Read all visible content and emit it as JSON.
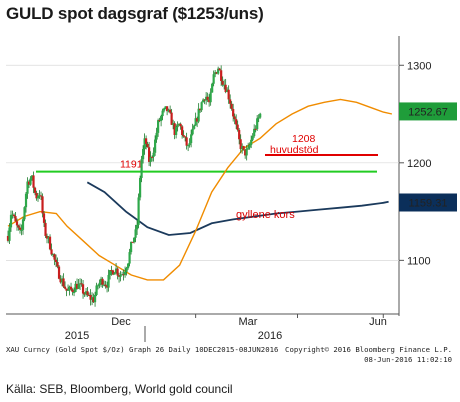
{
  "title": "GULD spot dagsgraf ($1253/uns)",
  "source": "Källa: SEB, Bloomberg, World gold council",
  "credit": {
    "line1_left": "XAU Curncy (Gold Spot  $/Oz) Graph 26  Daily 10DEC2015-08JUN2016",
    "line1_right": "Copyright© 2016 Bloomberg Finance L.P.",
    "line2_right": "08-Jun-2016 11:02:10"
  },
  "chart_data": {
    "type": "candlestick",
    "y_ticks": [
      1100,
      1200,
      1300
    ],
    "ylim": [
      1045,
      1330
    ],
    "x_labels": [
      {
        "label": "Dec",
        "row": 1
      },
      {
        "label": "Mar",
        "row": 1
      },
      {
        "label": "Jun",
        "row": 1
      },
      {
        "label": "2015",
        "row": 2
      },
      {
        "label": "2016",
        "row": 2
      }
    ],
    "last_price": {
      "value": "1252.67",
      "y": 1252.67,
      "color": "#1f9d3a"
    },
    "ma_value": {
      "value": "1159.31",
      "y": 1159.31,
      "color": "#0b2f5a"
    },
    "levels": [
      {
        "label": "1191",
        "value": 1191,
        "color": "#22cc22"
      },
      {
        "label": "1208",
        "value": 1208,
        "color": "#e00000"
      }
    ],
    "annotations": [
      {
        "text": "huvudstöd",
        "color": "#e00000"
      },
      {
        "text": "gyllene kors",
        "color": "#d80000"
      }
    ],
    "anchors": [
      [
        0,
        1125
      ],
      [
        3,
        1150
      ],
      [
        8,
        1135
      ],
      [
        12,
        1125
      ],
      [
        18,
        1180
      ],
      [
        22,
        1185
      ],
      [
        26,
        1165
      ],
      [
        30,
        1170
      ],
      [
        34,
        1130
      ],
      [
        38,
        1120
      ],
      [
        42,
        1105
      ],
      [
        46,
        1090
      ],
      [
        50,
        1080
      ],
      [
        55,
        1068
      ],
      [
        60,
        1070
      ],
      [
        64,
        1075
      ],
      [
        68,
        1072
      ],
      [
        72,
        1065
      ],
      [
        76,
        1062
      ],
      [
        80,
        1060
      ],
      [
        84,
        1075
      ],
      [
        88,
        1080
      ],
      [
        92,
        1075
      ],
      [
        96,
        1088
      ],
      [
        100,
        1092
      ],
      [
        104,
        1085
      ],
      [
        108,
        1088
      ],
      [
        112,
        1100
      ],
      [
        116,
        1120
      ],
      [
        120,
        1130
      ],
      [
        124,
        1200
      ],
      [
        128,
        1225
      ],
      [
        132,
        1200
      ],
      [
        136,
        1215
      ],
      [
        140,
        1240
      ],
      [
        144,
        1250
      ],
      [
        148,
        1255
      ],
      [
        152,
        1245
      ],
      [
        156,
        1230
      ],
      [
        160,
        1240
      ],
      [
        164,
        1225
      ],
      [
        168,
        1215
      ],
      [
        172,
        1230
      ],
      [
        176,
        1245
      ],
      [
        180,
        1260
      ],
      [
        184,
        1270
      ],
      [
        188,
        1260
      ],
      [
        192,
        1290
      ],
      [
        196,
        1298
      ],
      [
        200,
        1285
      ],
      [
        204,
        1275
      ],
      [
        208,
        1260
      ],
      [
        212,
        1240
      ],
      [
        216,
        1220
      ],
      [
        220,
        1210
      ],
      [
        224,
        1212
      ],
      [
        228,
        1228
      ],
      [
        232,
        1240
      ],
      [
        236,
        1252
      ]
    ],
    "series": [
      {
        "name": "",
        "type": "ma_long",
        "color": "#1b3a5c",
        "points": [
          [
            74,
            1180
          ],
          [
            90,
            1170
          ],
          [
            110,
            1150
          ],
          [
            130,
            1134
          ],
          [
            150,
            1126
          ],
          [
            170,
            1128
          ],
          [
            190,
            1138
          ],
          [
            210,
            1142
          ],
          [
            230,
            1145
          ],
          [
            250,
            1148
          ],
          [
            270,
            1150
          ],
          [
            290,
            1152
          ],
          [
            310,
            1154
          ],
          [
            330,
            1156
          ],
          [
            350,
            1159
          ],
          [
            355,
            1160
          ]
        ]
      },
      {
        "name": "",
        "type": "ma_short",
        "color": "#f08c00",
        "points": [
          [
            0,
            1135
          ],
          [
            15,
            1145
          ],
          [
            30,
            1150
          ],
          [
            45,
            1148
          ],
          [
            55,
            1135
          ],
          [
            70,
            1120
          ],
          [
            85,
            1105
          ],
          [
            100,
            1095
          ],
          [
            115,
            1085
          ],
          [
            130,
            1080
          ],
          [
            145,
            1080
          ],
          [
            160,
            1095
          ],
          [
            175,
            1130
          ],
          [
            190,
            1170
          ],
          [
            205,
            1195
          ],
          [
            220,
            1215
          ],
          [
            235,
            1225
          ],
          [
            250,
            1240
          ],
          [
            265,
            1250
          ],
          [
            280,
            1258
          ],
          [
            295,
            1262
          ],
          [
            310,
            1265
          ],
          [
            325,
            1262
          ],
          [
            340,
            1256
          ],
          [
            350,
            1252
          ],
          [
            358,
            1250
          ]
        ]
      }
    ]
  }
}
